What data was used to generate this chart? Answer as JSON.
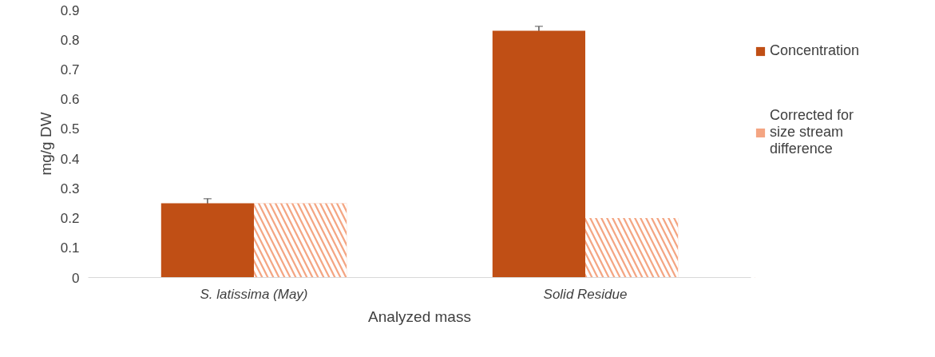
{
  "chart_data": {
    "type": "bar",
    "xlabel": "Analyzed mass",
    "ylabel": "mg/g DW",
    "categories": [
      "S. latissima (May)",
      "Solid Residue"
    ],
    "series": [
      {
        "name": "Concentration",
        "color": "#c04f15",
        "values": [
          0.25,
          0.83
        ],
        "errors": [
          0.015,
          0.015
        ]
      },
      {
        "name": "Corrected for size stream difference",
        "color": "#f4a582",
        "values": [
          0.25,
          0.2
        ],
        "errors": [
          null,
          null
        ]
      }
    ],
    "ylim": [
      0,
      0.9
    ],
    "yticks": [
      0,
      0.1,
      0.2,
      0.3,
      0.4,
      0.5,
      0.6,
      0.7,
      0.8,
      0.9
    ],
    "grid": false,
    "legend": "right"
  }
}
